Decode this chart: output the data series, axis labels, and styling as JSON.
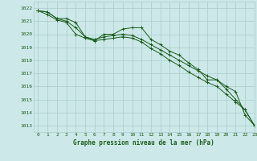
{
  "xlabel": "Graphe pression niveau de la mer (hPa)",
  "ylim": [
    1012.5,
    1022.5
  ],
  "xlim": [
    -0.5,
    23
  ],
  "yticks": [
    1013,
    1014,
    1015,
    1016,
    1017,
    1018,
    1019,
    1020,
    1021,
    1022
  ],
  "xticks": [
    0,
    1,
    2,
    3,
    4,
    5,
    6,
    7,
    8,
    9,
    10,
    11,
    12,
    13,
    14,
    15,
    16,
    17,
    18,
    19,
    20,
    21,
    22,
    23
  ],
  "bg_color": "#cce8e8",
  "grid_color": "#aacccc",
  "line_color": "#1a5c1a",
  "line1": [
    1021.8,
    1021.7,
    1021.2,
    1021.2,
    1020.9,
    1019.8,
    1019.5,
    1020.0,
    1020.0,
    1020.4,
    1020.5,
    1020.5,
    1019.6,
    1019.2,
    1018.7,
    1018.4,
    1017.8,
    1017.3,
    1016.5,
    1016.5,
    1015.8,
    1015.0,
    1014.2,
    1013.0
  ],
  "line2": [
    1021.8,
    1021.7,
    1021.2,
    1021.0,
    1020.5,
    1019.8,
    1019.6,
    1019.8,
    1019.9,
    1020.0,
    1019.9,
    1019.6,
    1019.2,
    1018.8,
    1018.4,
    1018.0,
    1017.6,
    1017.2,
    1016.8,
    1016.5,
    1016.0,
    1015.6,
    1013.8,
    1013.0
  ],
  "line3": [
    1021.8,
    1021.5,
    1021.1,
    1020.9,
    1020.0,
    1019.7,
    1019.5,
    1019.6,
    1019.7,
    1019.8,
    1019.7,
    1019.4,
    1018.9,
    1018.5,
    1018.0,
    1017.6,
    1017.1,
    1016.7,
    1016.3,
    1016.0,
    1015.4,
    1014.8,
    1014.2,
    1013.0
  ]
}
